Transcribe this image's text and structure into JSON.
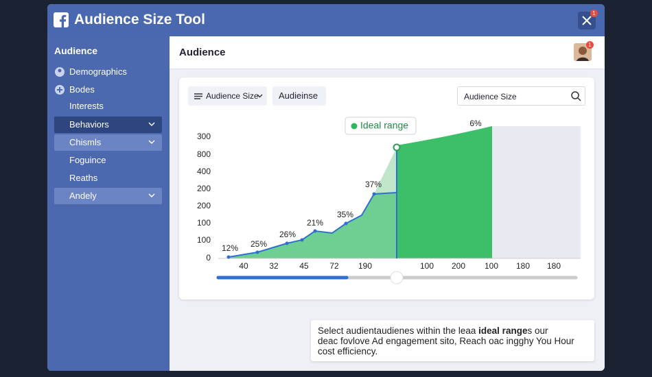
{
  "header": {
    "title": "Audience Size Tool",
    "badge": "1"
  },
  "sidebar": {
    "title": "Audience",
    "items": [
      "Demographics",
      "Bodes",
      "Interests",
      "Behaviors",
      "Chismls",
      "Foguince",
      "Reaths",
      "Andely"
    ]
  },
  "main": {
    "title": "Audience",
    "avatar_badge": "1"
  },
  "toolbar": {
    "dropdown": "Audience Size",
    "tab": "Audieinse",
    "search": "Audience Size"
  },
  "chart": {
    "badge": "Ideal range",
    "y_labels": [
      "300",
      "800",
      "400",
      "200",
      "200",
      "100",
      "100",
      "0"
    ],
    "x_labels": [
      "40",
      "32",
      "45",
      "72",
      "190",
      "100",
      "200",
      "100",
      "180",
      "180"
    ],
    "point_labels": [
      "12%",
      "25%",
      "26%",
      "21%",
      "35%",
      "37%",
      "6%"
    ]
  },
  "note": {
    "before": "Select audientaudienes within the leaa ",
    "bold": "ideal range",
    "after": "s our",
    "line2": "deac fovlove Ad engagement sito, Reach oac ingghy You Hour",
    "line3": "cost efficiency."
  }
}
